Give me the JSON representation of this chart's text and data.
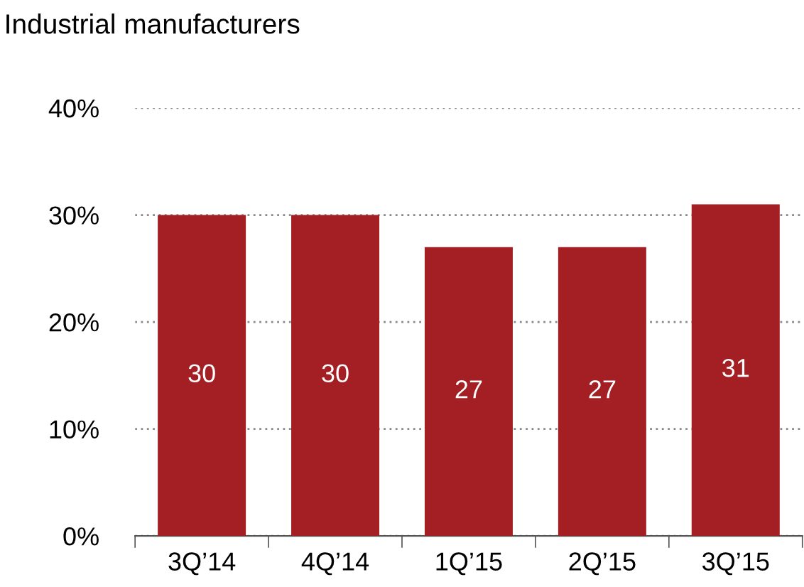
{
  "chart_data": {
    "type": "bar",
    "title": "Industrial manufacturers",
    "categories": [
      "3Q’14",
      "4Q’14",
      "1Q’15",
      "2Q’15",
      "3Q’15"
    ],
    "values": [
      30,
      30,
      27,
      27,
      31
    ],
    "color": "#a31f24",
    "ylim": [
      0,
      40
    ],
    "yticks": [
      {
        "value": 0,
        "label": "0%"
      },
      {
        "value": 10,
        "label": "10%"
      },
      {
        "value": 20,
        "label": "20%"
      },
      {
        "value": 30,
        "label": "30%"
      },
      {
        "value": 40,
        "label": "40%"
      }
    ],
    "grid": "y",
    "data_labels": true
  }
}
